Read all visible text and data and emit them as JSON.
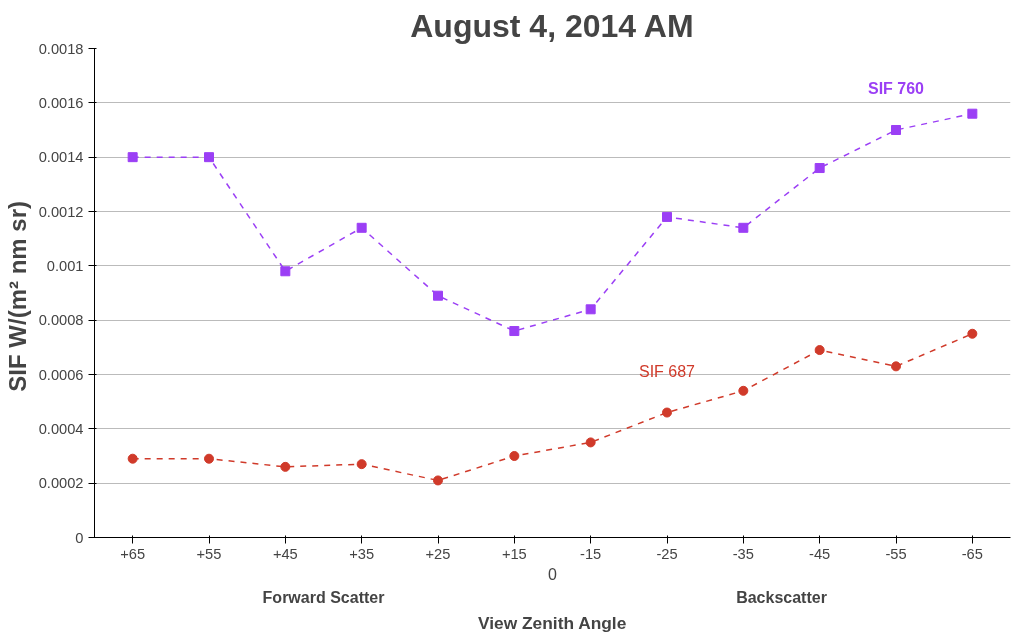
{
  "chart_data": {
    "type": "line",
    "title": "August 4, 2014 AM",
    "xlabel": "View Zenith Angle",
    "ylabel": "SIF  W/(m² nm sr)",
    "categories": [
      "+65",
      "+55",
      "+45",
      "+35",
      "+25",
      "+15",
      "-15",
      "-25",
      "-35",
      "-45",
      "-55",
      "-65"
    ],
    "series": [
      {
        "name": "SIF 760",
        "color": "#9b3ff5",
        "values": [
          0.0014,
          0.0014,
          0.00098,
          0.00114,
          0.00089,
          0.00076,
          0.00084,
          0.00118,
          0.00114,
          0.00136,
          0.0015,
          0.00156
        ]
      },
      {
        "name": "SIF 687",
        "color": "#d03a2a",
        "marker": "circle",
        "values": [
          0.00029,
          0.00029,
          0.00026,
          0.00027,
          0.00021,
          0.0003,
          0.00035,
          0.00046,
          0.00054,
          0.00069,
          0.00063,
          0.00075
        ]
      }
    ],
    "ylim": [
      0,
      0.0018
    ],
    "yticks": [
      0,
      0.0002,
      0.0004,
      0.0006,
      0.0008,
      0.001,
      0.0012,
      0.0014,
      0.0016,
      0.0018
    ],
    "grid": "y",
    "marker": "square",
    "line_style": "dashed",
    "annotations": [
      "0",
      "Forward Scatter",
      "Backscatter"
    ]
  }
}
